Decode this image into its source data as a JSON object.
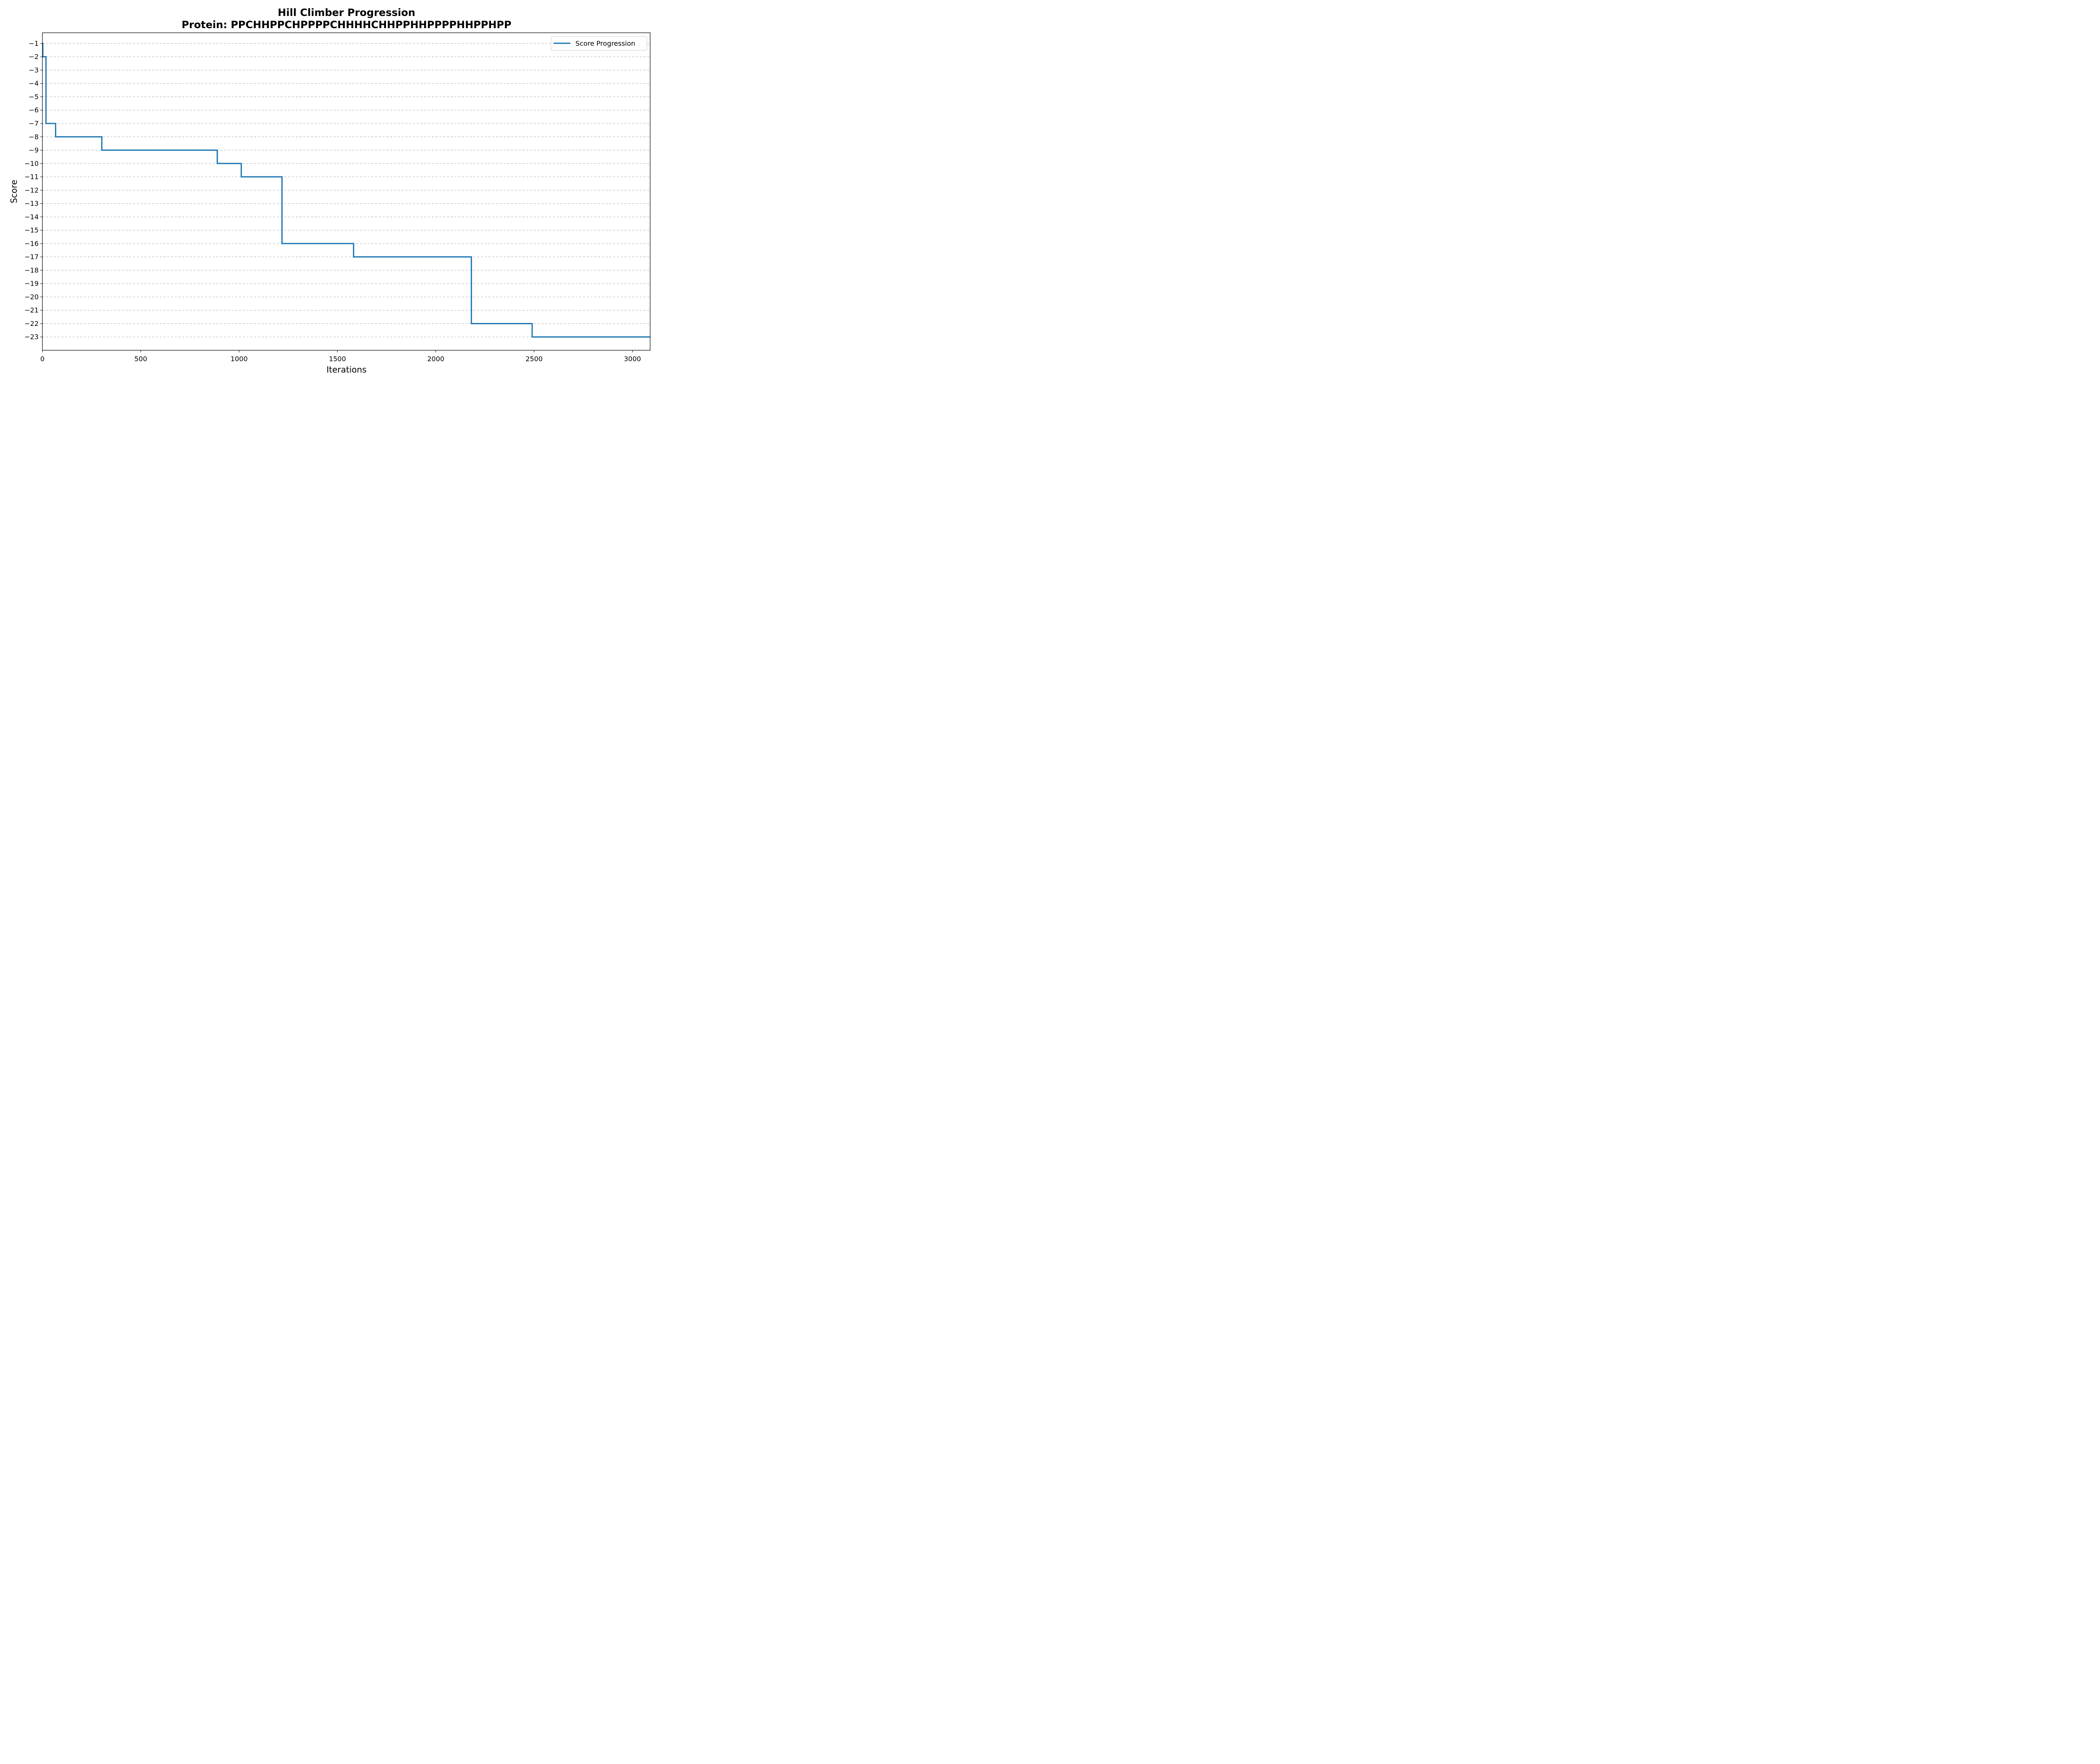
{
  "chart_data": {
    "type": "line",
    "title": "Hill Climber Progression",
    "subtitle": "Protein: PPCHHPPCHPPPPCHHHHCHHPPHHPPPPHHPPHPP",
    "xlabel": "Iterations",
    "ylabel": "Score",
    "xlim": [
      0,
      3090
    ],
    "ylim": [
      -24,
      -0.2
    ],
    "x_ticks": [
      0,
      500,
      1000,
      1500,
      2000,
      2500,
      3000
    ],
    "y_ticks": [
      -1,
      -2,
      -3,
      -4,
      -5,
      -6,
      -7,
      -8,
      -9,
      -10,
      -11,
      -12,
      -13,
      -14,
      -15,
      -16,
      -17,
      -18,
      -19,
      -20,
      -21,
      -22,
      -23
    ],
    "grid": "horizontal dashed",
    "legend_position": "top-right",
    "series": [
      {
        "name": "Score Progression",
        "color": "#1f77b4",
        "step": true,
        "x": [
          0,
          2,
          18,
          67,
          302,
          889,
          1011,
          1218,
          1582,
          2181,
          2490,
          3090
        ],
        "y": [
          -1,
          -2,
          -7,
          -8,
          -9,
          -10,
          -11,
          -16,
          -17,
          -22,
          -23,
          -23
        ]
      }
    ]
  }
}
